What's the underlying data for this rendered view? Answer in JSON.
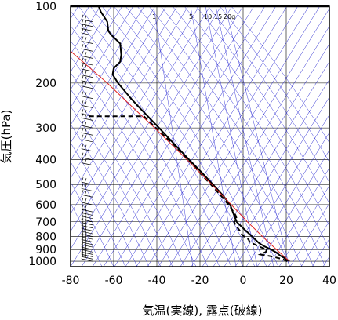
{
  "chart_data": {
    "type": "skew-t",
    "xlabel": "気温(実線), 露点(破線)",
    "ylabel": "気圧(hPa)",
    "xlim": [
      -80,
      40
    ],
    "ylim": [
      1050,
      100
    ],
    "y_scale": "log",
    "x_ticks": [
      -80,
      -60,
      -40,
      -20,
      0,
      20,
      40
    ],
    "x_tick_labels": [
      "-80",
      "-60",
      "-40",
      "-20",
      "0",
      "20",
      "40"
    ],
    "y_ticks": [
      100,
      200,
      300,
      400,
      500,
      600,
      700,
      800,
      900,
      1000
    ],
    "y_tick_labels": [
      "100",
      "200",
      "300",
      "400",
      "500",
      "600",
      "700",
      "800",
      "900",
      "1000"
    ],
    "mixing_ratio_labels": [
      "1",
      "5",
      "10",
      "15",
      "20g"
    ],
    "mixing_ratio_values": [
      1,
      5,
      10,
      15,
      20
    ],
    "grid": true,
    "series": [
      {
        "kind": "temperature",
        "style": "solid-black-thick",
        "points": [
          [
            1000,
            21.5
          ],
          [
            975,
            19.5
          ],
          [
            950,
            17.2
          ],
          [
            925,
            15.5
          ],
          [
            900,
            13.0
          ],
          [
            875,
            10.0
          ],
          [
            850,
            7.5
          ],
          [
            800,
            4.2
          ],
          [
            750,
            0.6
          ],
          [
            700,
            -3.0
          ],
          [
            650,
            -4.5
          ],
          [
            600,
            -6.0
          ],
          [
            550,
            -9.5
          ],
          [
            500,
            -14.0
          ],
          [
            450,
            -19.0
          ],
          [
            400,
            -25.0
          ],
          [
            350,
            -31.5
          ],
          [
            300,
            -39.0
          ],
          [
            250,
            -48.0
          ],
          [
            230,
            -52.0
          ],
          [
            200,
            -58.0
          ],
          [
            185,
            -60.5
          ],
          [
            175,
            -60.0
          ],
          [
            165,
            -57.0
          ],
          [
            155,
            -56.5
          ],
          [
            140,
            -57.0
          ],
          [
            130,
            -61.0
          ],
          [
            125,
            -62.5
          ],
          [
            115,
            -63.0
          ],
          [
            105,
            -66.0
          ],
          [
            100,
            -67.0
          ]
        ]
      },
      {
        "kind": "dewpoint",
        "style": "dashed-black-thick",
        "points": [
          [
            1000,
            20.5
          ],
          [
            980,
            18.0
          ],
          [
            960,
            14.0
          ],
          [
            940,
            8.0
          ],
          [
            920,
            10.5
          ],
          [
            900,
            11.0
          ],
          [
            880,
            8.0
          ],
          [
            860,
            5.5
          ],
          [
            840,
            3.0
          ],
          [
            820,
            2.5
          ],
          [
            800,
            0.5
          ],
          [
            780,
            -1.0
          ],
          [
            760,
            -1.5
          ],
          [
            740,
            -2.5
          ],
          [
            720,
            -3.5
          ],
          [
            700,
            -4.2
          ],
          [
            680,
            -3.0
          ],
          [
            660,
            -3.5
          ],
          [
            640,
            -4.5
          ],
          [
            620,
            -5.5
          ],
          [
            600,
            -6.8
          ],
          [
            550,
            -10.5
          ],
          [
            500,
            -15.0
          ],
          [
            450,
            -20.0
          ],
          [
            400,
            -25.5
          ],
          [
            350,
            -32.0
          ],
          [
            300,
            -40.5
          ],
          [
            270,
            -46.0
          ],
          [
            270,
            -72.0
          ]
        ]
      },
      {
        "kind": "parcel",
        "style": "solid-red-thin",
        "points": [
          [
            1000,
            21.5
          ],
          [
            900,
            15.5
          ],
          [
            800,
            9.0
          ],
          [
            700,
            2.0
          ],
          [
            600,
            -5.5
          ],
          [
            500,
            -14.5
          ],
          [
            400,
            -26.0
          ],
          [
            300,
            -41.0
          ],
          [
            250,
            -51.0
          ],
          [
            200,
            -63.0
          ],
          [
            150,
            -80.0
          ]
        ]
      }
    ],
    "wind_barbs_pressures": [
      1000,
      980,
      960,
      940,
      920,
      900,
      880,
      860,
      840,
      820,
      800,
      780,
      760,
      740,
      720,
      700,
      680,
      660,
      640,
      600,
      560,
      530,
      500,
      420,
      400,
      370,
      340,
      320,
      300,
      280,
      270,
      250,
      230,
      210,
      200,
      190,
      180,
      170,
      160,
      150,
      140,
      130,
      125,
      120,
      115
    ]
  }
}
